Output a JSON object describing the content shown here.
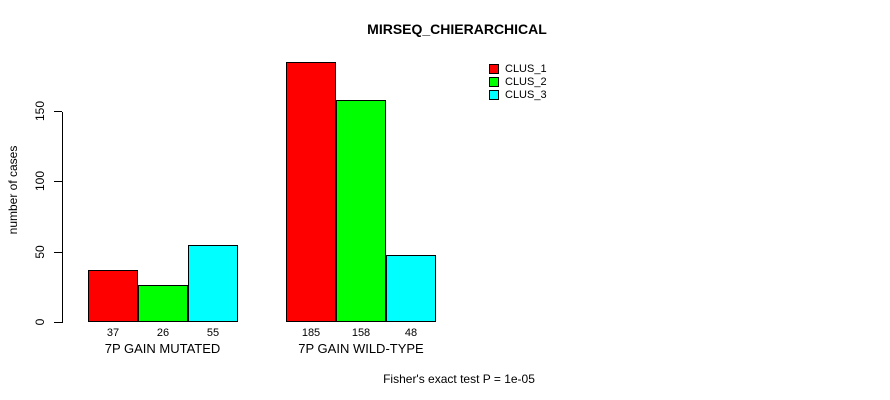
{
  "chart_data": {
    "type": "bar",
    "title": "MIRSEQ_CHIERARCHICAL",
    "ylabel": "number of cases",
    "xlabel": "",
    "categories": [
      "7P GAIN MUTATED",
      "7P GAIN WILD-TYPE"
    ],
    "series": [
      {
        "name": "CLUS_1",
        "color": "#ff0000",
        "values": [
          37,
          185
        ]
      },
      {
        "name": "CLUS_2",
        "color": "#00ff00",
        "values": [
          26,
          158
        ]
      },
      {
        "name": "CLUS_3",
        "color": "#00ffff",
        "values": [
          55,
          48
        ]
      }
    ],
    "yticks": [
      0,
      50,
      100,
      150
    ],
    "ylim": [
      0,
      185
    ],
    "grid": false,
    "bar_border_color": "#000000",
    "value_labels_shown": true,
    "legend_position": "top-right",
    "legend_entries": [
      "CLUS_1",
      "CLUS_2",
      "CLUS_3"
    ],
    "annotation": "Fisher's exact test P = 1e-05"
  }
}
